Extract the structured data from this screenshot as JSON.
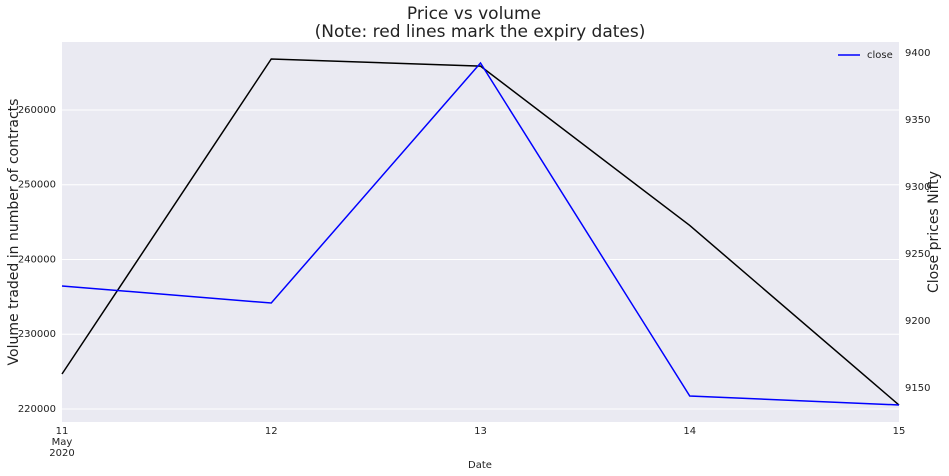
{
  "chart_data": {
    "type": "line",
    "title": "Price vs volume",
    "subtitle": "(Note: red lines mark the expiry dates)",
    "x_label": "Date",
    "y_label": "Volume traded in number of contracts",
    "y2_label": "Close prices Nifty",
    "x": [
      11,
      12,
      13,
      14,
      15
    ],
    "xlim": [
      11,
      15
    ],
    "xticks": [
      {
        "value": 11,
        "label": "11\nMay\n2020"
      },
      12,
      13,
      14,
      15
    ],
    "ylim": [
      218260,
      269090
    ],
    "yticks": [
      220000,
      230000,
      240000,
      250000,
      260000
    ],
    "y2lim": [
      9124.6,
      9408.2
    ],
    "y2ticks": [
      9150,
      9200,
      9250,
      9300,
      9350,
      9400
    ],
    "grid": true,
    "legend": "upper right",
    "series": [
      {
        "color": "#000000",
        "values": [
          224680,
          266820,
          265860,
          244550,
          220530
        ]
      },
      {
        "name": "close",
        "color": "#0000ff",
        "axis": "y2",
        "values": [
          9226.1,
          9213.4,
          9392.5,
          9144.0,
          9137.3
        ]
      }
    ]
  }
}
